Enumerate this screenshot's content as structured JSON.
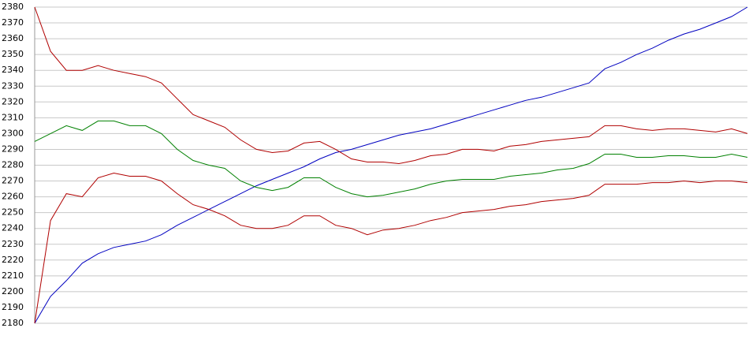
{
  "chart_data": {
    "type": "line",
    "ylim": [
      2180,
      2380
    ],
    "yticks": [
      2180,
      2190,
      2200,
      2210,
      2220,
      2230,
      2240,
      2250,
      2260,
      2270,
      2280,
      2290,
      2300,
      2310,
      2320,
      2330,
      2340,
      2350,
      2360,
      2370,
      2380
    ],
    "grid": true,
    "series": [
      {
        "color": "#0000c0",
        "values": [
          2180,
          2197,
          2207,
          2218,
          2224,
          2228,
          2230,
          2232,
          2236,
          2242,
          2247,
          2252,
          2257,
          2262,
          2267,
          2271,
          2275,
          2279,
          2284,
          2288,
          2290,
          2293,
          2296,
          2299,
          2301,
          2303,
          2306,
          2309,
          2312,
          2315,
          2318,
          2321,
          2323,
          2326,
          2329,
          2332,
          2341,
          2345,
          2350,
          2354,
          2359,
          2363,
          2366,
          2370,
          2374,
          2380
        ]
      },
      {
        "color": "#b00000",
        "values": [
          2380,
          2352,
          2340,
          2340,
          2343,
          2340,
          2338,
          2336,
          2332,
          2322,
          2312,
          2308,
          2304,
          2296,
          2290,
          2288,
          2289,
          2294,
          2295,
          2290,
          2284,
          2282,
          2282,
          2281,
          2283,
          2286,
          2287,
          2290,
          2290,
          2289,
          2292,
          2293,
          2295,
          2296,
          2297,
          2298,
          2305,
          2305,
          2303,
          2302,
          2303,
          2303,
          2302,
          2301,
          2303,
          2300
        ]
      },
      {
        "color": "#008000",
        "values": [
          2295,
          2300,
          2305,
          2302,
          2308,
          2308,
          2305,
          2305,
          2300,
          2290,
          2283,
          2280,
          2278,
          2270,
          2266,
          2264,
          2266,
          2272,
          2272,
          2266,
          2262,
          2260,
          2261,
          2263,
          2265,
          2268,
          2270,
          2271,
          2271,
          2271,
          2273,
          2274,
          2275,
          2277,
          2278,
          2281,
          2287,
          2287,
          2285,
          2285,
          2286,
          2286,
          2285,
          2285,
          2287,
          2285
        ]
      },
      {
        "color": "#b00000",
        "values": [
          2180,
          2245,
          2262,
          2260,
          2272,
          2275,
          2273,
          2273,
          2270,
          2262,
          2255,
          2252,
          2248,
          2242,
          2240,
          2240,
          2242,
          2248,
          2248,
          2242,
          2240,
          2236,
          2239,
          2240,
          2242,
          2245,
          2247,
          2250,
          2251,
          2252,
          2254,
          2255,
          2257,
          2258,
          2259,
          2261,
          2268,
          2268,
          2268,
          2269,
          2269,
          2270,
          2269,
          2270,
          2270,
          2269
        ]
      }
    ]
  }
}
